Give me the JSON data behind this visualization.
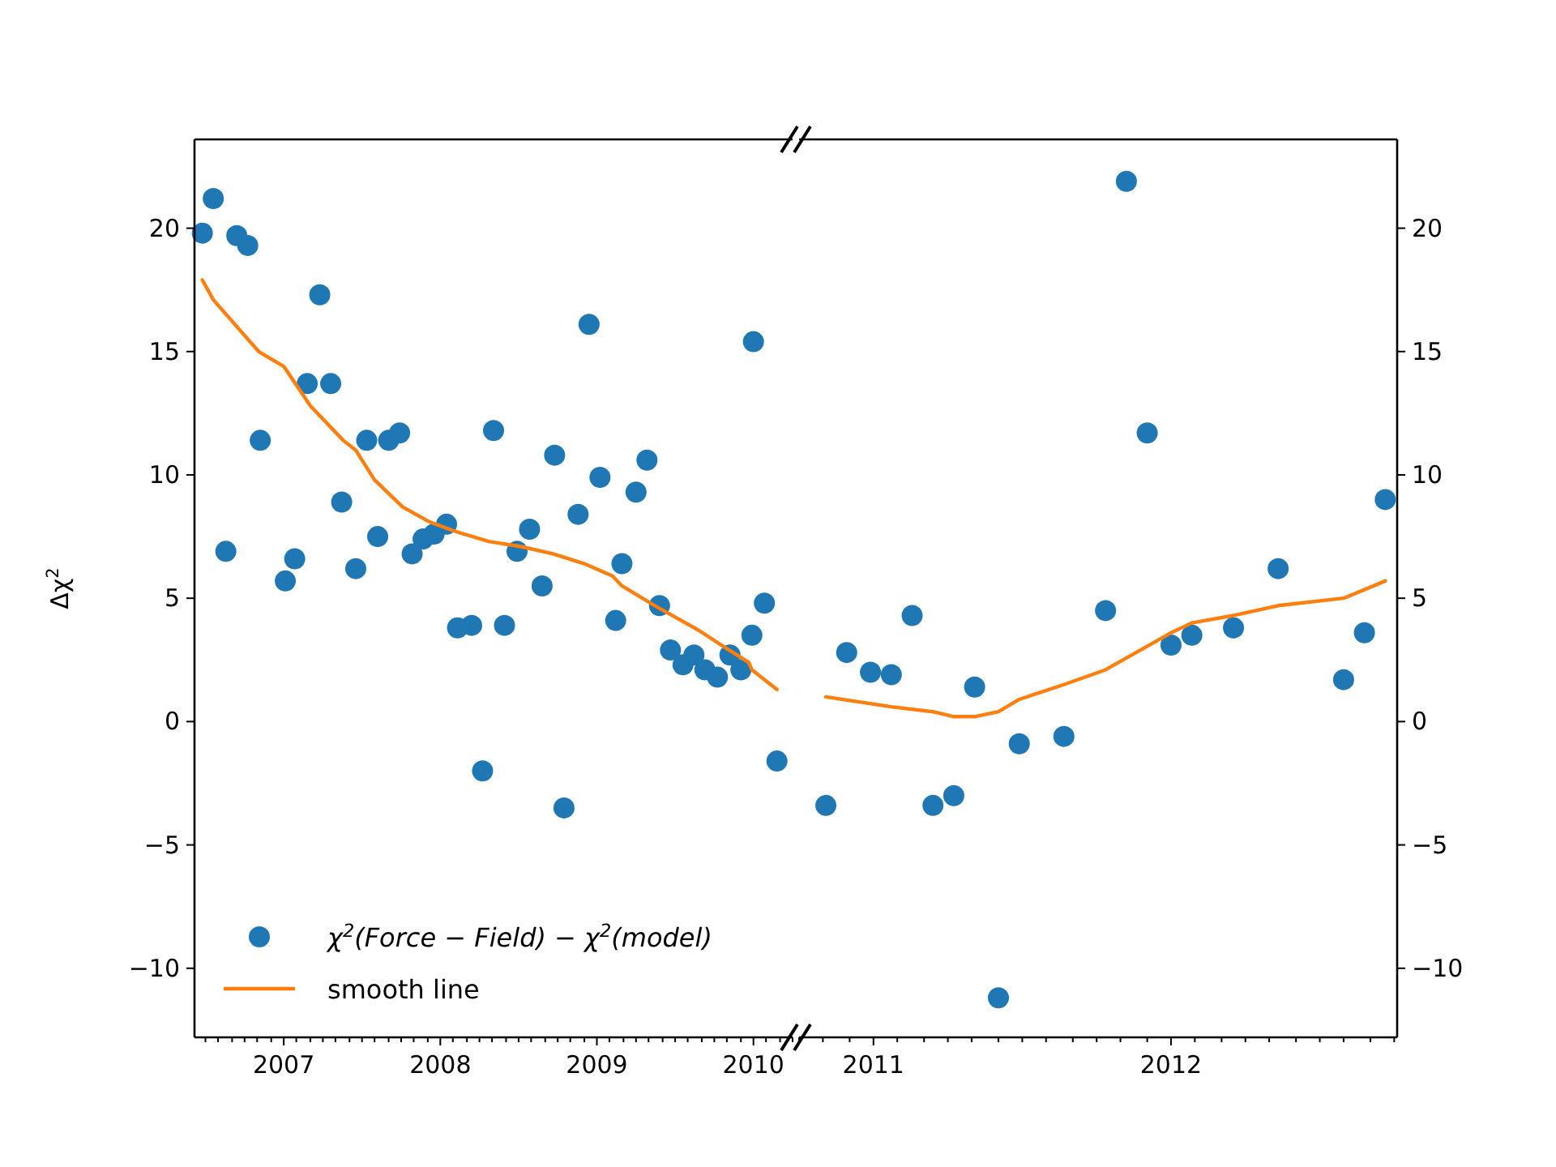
{
  "chart_data": [
    {
      "type": "scatter",
      "ylabel": "Δχ$^{2}$",
      "legend": "bottom left",
      "grid": false,
      "xlim": [
        2006.43,
        2010.25
      ],
      "xticks": [
        {
          "value": 2006.5,
          "label": null
        },
        {
          "value": 2006.58,
          "label": null
        },
        {
          "value": 2006.67,
          "label": null
        },
        {
          "value": 2006.75,
          "label": null
        },
        {
          "value": 2006.83,
          "label": null
        },
        {
          "value": 2006.92,
          "label": null
        },
        2007,
        {
          "value": 2007.08,
          "label": null
        },
        {
          "value": 2007.17,
          "label": null
        },
        {
          "value": 2007.25,
          "label": null
        },
        {
          "value": 2007.33,
          "label": null
        },
        {
          "value": 2007.42,
          "label": null
        },
        {
          "value": 2007.5,
          "label": null
        },
        {
          "value": 2007.58,
          "label": null
        },
        {
          "value": 2007.67,
          "label": null
        },
        {
          "value": 2007.75,
          "label": null
        },
        {
          "value": 2007.83,
          "label": null
        },
        {
          "value": 2007.92,
          "label": null
        },
        2008,
        {
          "value": 2008.08,
          "label": null
        },
        {
          "value": 2008.17,
          "label": null
        },
        {
          "value": 2008.25,
          "label": null
        },
        {
          "value": 2008.33,
          "label": null
        },
        {
          "value": 2008.42,
          "label": null
        },
        {
          "value": 2008.5,
          "label": null
        },
        {
          "value": 2008.58,
          "label": null
        },
        {
          "value": 2008.67,
          "label": null
        },
        {
          "value": 2008.75,
          "label": null
        },
        {
          "value": 2008.83,
          "label": null
        },
        {
          "value": 2008.92,
          "label": null
        },
        2009,
        {
          "value": 2009.08,
          "label": null
        },
        {
          "value": 2009.17,
          "label": null
        },
        {
          "value": 2009.25,
          "label": null
        },
        {
          "value": 2009.33,
          "label": null
        },
        {
          "value": 2009.42,
          "label": null
        },
        {
          "value": 2009.5,
          "label": null
        },
        {
          "value": 2009.58,
          "label": null
        },
        {
          "value": 2009.67,
          "label": null
        },
        {
          "value": 2009.75,
          "label": null
        },
        {
          "value": 2009.83,
          "label": null
        },
        {
          "value": 2009.92,
          "label": null
        },
        2010,
        {
          "value": 2010.08,
          "label": null
        },
        {
          "value": 2010.17,
          "label": null
        },
        {
          "value": 2010.25,
          "label": null
        }
      ],
      "ylim": [
        -12.8,
        23.6
      ],
      "yticks": [
        {
          "value": -10,
          "label": "−10"
        },
        {
          "value": -5,
          "label": "−5"
        },
        0,
        5,
        10,
        15,
        20
      ],
      "series": [
        {
          "name": "χ$^{2}$(Force − Field) − χ$^{2}$(model)",
          "marker": "circle",
          "color": "#1f77b4",
          "x": [
            2006.48,
            2006.55,
            2006.63,
            2006.7,
            2006.77,
            2006.85,
            2007.01,
            2007.07,
            2007.15,
            2007.23,
            2007.3,
            2007.37,
            2007.46,
            2007.53,
            2007.6,
            2007.67,
            2007.74,
            2007.82,
            2007.89,
            2007.96,
            2008.04,
            2008.11,
            2008.2,
            2008.27,
            2008.34,
            2008.41,
            2008.49,
            2008.57,
            2008.65,
            2008.73,
            2008.79,
            2008.88,
            2008.95,
            2009.02,
            2009.12,
            2009.16,
            2009.25,
            2009.32,
            2009.4,
            2009.47,
            2009.55,
            2009.62,
            2009.69,
            2009.77,
            2009.85,
            2009.92,
            2009.99,
            2010,
            2010.07,
            2010.15
          ],
          "values": [
            19.8,
            21.2,
            6.9,
            19.7,
            19.3,
            11.4,
            5.7,
            6.6,
            13.7,
            17.3,
            13.7,
            8.9,
            6.2,
            11.4,
            7.5,
            11.4,
            11.7,
            6.8,
            7.4,
            7.6,
            8,
            3.8,
            3.9,
            -2,
            11.8,
            3.9,
            6.9,
            7.8,
            5.5,
            10.8,
            -3.5,
            8.4,
            16.1,
            9.9,
            4.1,
            6.4,
            9.3,
            10.6,
            4.7,
            2.9,
            2.3,
            2.7,
            2.1,
            1.8,
            2.7,
            2.1,
            3.5,
            15.4,
            4.8,
            -1.6
          ]
        },
        {
          "name": "smooth line",
          "type": "line",
          "marker": "none",
          "color": "#ff7f0e",
          "line_style": "solid",
          "x": [
            2006.48,
            2006.55,
            2006.84,
            2007,
            2007.17,
            2007.38,
            2007.46,
            2007.58,
            2007.76,
            2007.93,
            2008.1,
            2008.31,
            2008.51,
            2008.72,
            2008.92,
            2009.1,
            2009.16,
            2009.37,
            2009.65,
            2009.82,
            2009.97,
            2009.99,
            2010.15
          ],
          "values": [
            17.9,
            17.1,
            15,
            14.4,
            12.8,
            11.4,
            11,
            9.8,
            8.7,
            8.1,
            7.7,
            7.3,
            7.1,
            6.8,
            6.4,
            5.9,
            5.5,
            4.7,
            3.7,
            3,
            2.4,
            2.1,
            1.3
          ]
        }
      ]
    },
    {
      "type": "scatter",
      "grid": false,
      "xlim": [
        2010.75,
        2012.76
      ],
      "xticks": [
        {
          "value": 2010.75,
          "label": null
        },
        {
          "value": 2010.83,
          "label": null
        },
        {
          "value": 2010.92,
          "label": null
        },
        2011,
        {
          "value": 2011.08,
          "label": null
        },
        {
          "value": 2011.17,
          "label": null
        },
        {
          "value": 2011.25,
          "label": null
        },
        {
          "value": 2011.33,
          "label": null
        },
        {
          "value": 2011.42,
          "label": null
        },
        {
          "value": 2011.5,
          "label": null
        },
        {
          "value": 2011.58,
          "label": null
        },
        {
          "value": 2011.67,
          "label": null
        },
        {
          "value": 2011.75,
          "label": null
        },
        {
          "value": 2011.83,
          "label": null
        },
        {
          "value": 2011.92,
          "label": null
        },
        2012,
        {
          "value": 2012.08,
          "label": null
        },
        {
          "value": 2012.17,
          "label": null
        },
        {
          "value": 2012.25,
          "label": null
        },
        {
          "value": 2012.33,
          "label": null
        },
        {
          "value": 2012.42,
          "label": null
        },
        {
          "value": 2012.5,
          "label": null
        },
        {
          "value": 2012.58,
          "label": null
        },
        {
          "value": 2012.67,
          "label": null
        },
        {
          "value": 2012.75,
          "label": null
        }
      ],
      "y2lim": [
        -12.8,
        23.6
      ],
      "y2ticks": [
        {
          "value": -10,
          "label": "−10"
        },
        {
          "value": -5,
          "label": "−5"
        },
        0,
        5,
        10,
        15,
        20
      ],
      "series": [
        {
          "marker": "circle",
          "axis": "y2",
          "color": "#1f77b4",
          "x": [
            2010.84,
            2010.91,
            2010.99,
            2011.06,
            2011.13,
            2011.2,
            2011.27,
            2011.34,
            2011.42,
            2011.49,
            2011.64,
            2011.78,
            2011.85,
            2011.92,
            2012,
            2012.07,
            2012.21,
            2012.36,
            2012.58,
            2012.65,
            2012.72
          ],
          "values": [
            -3.4,
            2.8,
            2,
            1.9,
            4.3,
            -3.4,
            -3,
            1.4,
            -11.2,
            -0.9,
            -0.6,
            4.5,
            21.9,
            11.7,
            3.1,
            3.5,
            3.8,
            6.2,
            1.7,
            3.6,
            9
          ]
        },
        {
          "type": "line",
          "marker": "none",
          "axis": "y2",
          "color": "#ff7f0e",
          "line_style": "solid",
          "x": [
            2010.84,
            2011.06,
            2011.2,
            2011.27,
            2011.34,
            2011.42,
            2011.49,
            2011.64,
            2011.78,
            2012,
            2012.07,
            2012.21,
            2012.36,
            2012.58,
            2012.72
          ],
          "values": [
            1,
            0.6,
            0.4,
            0.2,
            0.2,
            0.4,
            0.9,
            1.5,
            2.1,
            3.6,
            4,
            4.3,
            4.7,
            5,
            5.7
          ]
        }
      ]
    }
  ]
}
